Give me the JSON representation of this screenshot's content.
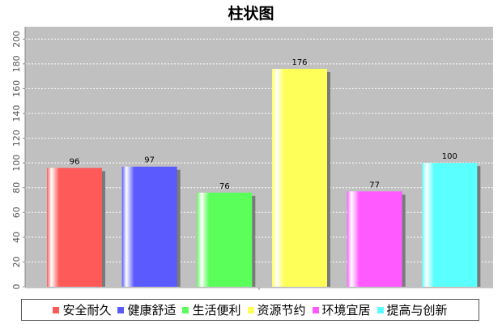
{
  "chart_data": {
    "type": "bar",
    "title": "柱状图",
    "categories": [
      "安全耐久",
      "健康舒适",
      "生活便利",
      "资源节约",
      "环境宜居",
      "提高与创新"
    ],
    "values": [
      96,
      97,
      76,
      176,
      77,
      100
    ],
    "data_labels": [
      "96",
      "97",
      "76",
      "176",
      "77",
      "100"
    ],
    "colors": [
      "#ff5a5a",
      "#5a5aff",
      "#5aff5a",
      "#ffff5a",
      "#ff5aff",
      "#5affff"
    ],
    "ylim": [
      0,
      210
    ],
    "yticks": [
      0,
      20,
      40,
      60,
      80,
      100,
      120,
      140,
      160,
      180,
      200
    ],
    "ytick_labels": [
      "0",
      "20",
      "40",
      "60",
      "80",
      "100",
      "120",
      "140",
      "160",
      "180",
      "200"
    ],
    "grid": true,
    "plot_background": "#c0c0c0",
    "legend_position": "bottom"
  }
}
